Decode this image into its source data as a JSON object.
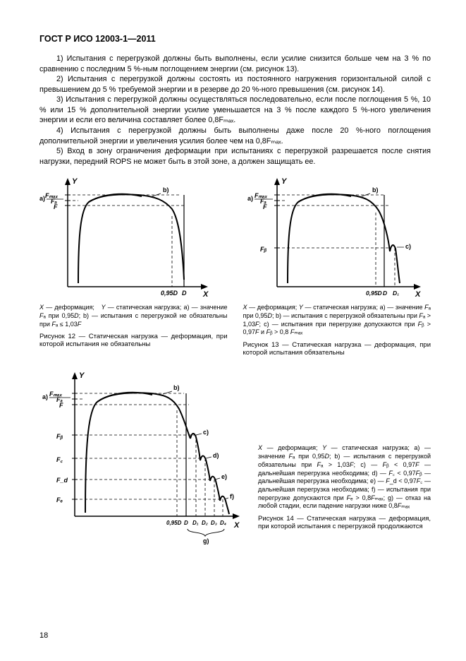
{
  "header": "ГОСТ Р ИСО 12003-1—2011",
  "paragraphs": [
    "1)  Испытания с перегрузкой должны быть выполнены, если усилие снизится больше чем на 3 % по сравнению с последним 5 %-ным поглощением энергии (см. рисунок 13).",
    "2)  Испытания с перегрузкой должны состоять из постоянного нагружения горизонтальной силой с превышением до 5 % требуемой энергии и в резерве до 20 %-ного превышения (см. рисунок 14).",
    "3)  Испытания с перегрузкой должны осуществляться последовательно, если после поглощения 5 %, 10 % или 15 % дополнительной энергии усилие уменьшается на 3 % после каждого 5 %-ного увеличения энергии и если его величина составляет более 0,8Fₘₐₓ.",
    "4)  Испытания с перегрузкой должны быть выполнены даже после 20 %-ного поглощения дополнительной энергии и увеличения усилия более чем на 0,8Fₘₐₓ.",
    "5)  Вход в зону ограничения деформации при испытаниях с перегрузкой разрешается после снятия нагрузки, передний ROPS не может быть в этой зоне, а должен защищать ее."
  ],
  "fig12": {
    "type": "line",
    "x_axis_label": "X",
    "y_axis_label": "Y",
    "y_ticks": [
      "Fₘₐₓ",
      "Fₐ",
      "F"
    ],
    "x_ticks": [
      "0,95D",
      "D"
    ],
    "annotations": [
      "a)",
      "b)"
    ],
    "curve": [
      [
        15,
        145
      ],
      [
        30,
        40
      ],
      [
        55,
        30
      ],
      [
        95,
        28
      ],
      [
        135,
        30
      ],
      [
        160,
        35
      ],
      [
        188,
        60
      ],
      [
        200,
        100
      ],
      [
        205,
        150
      ]
    ],
    "dash_y_levels": [
      30,
      38,
      45
    ],
    "x_tick_positions": [
      188,
      205
    ],
    "axis_color": "#000000",
    "line_color": "#000000",
    "line_width": 2,
    "background_color": "#ffffff",
    "caption_html": "<i>X</i> — деформация;&nbsp;&nbsp;&nbsp;<i>Y</i> — статическая нагрузка; a) — значение <i>F</i>ₐ при 0,95<i>D</i>; b) — испытания с перегрузкой не обязательны при <i>F</i>ₐ ≤ 1,03<i>F</i>",
    "title": "Рисунок 12 — Статическая нагрузка — деформация, при которой испытания не обязательны"
  },
  "fig13": {
    "type": "line",
    "x_axis_label": "X",
    "y_axis_label": "Y",
    "y_ticks": [
      "Fₘₐₓ",
      "Fₐ",
      "F",
      "Fᵦ"
    ],
    "x_ticks": [
      "0,95D",
      "D",
      "D₁"
    ],
    "annotations": [
      "a)",
      "b)",
      "c)"
    ],
    "curve": [
      [
        15,
        145
      ],
      [
        30,
        40
      ],
      [
        55,
        30
      ],
      [
        95,
        28
      ],
      [
        135,
        30
      ],
      [
        160,
        36
      ],
      [
        180,
        55
      ],
      [
        195,
        105
      ],
      [
        210,
        150
      ]
    ],
    "dash_y_levels": [
      30,
      38,
      45,
      105
    ],
    "x_tick_positions": [
      180,
      195,
      210
    ],
    "axis_color": "#000000",
    "line_color": "#000000",
    "line_width": 2,
    "background_color": "#ffffff",
    "caption_html": "<i>X</i> — деформация; <i>Y</i> — статическая нагрузка; a) — значение <i>F</i>ₐ при 0,95<i>D</i>; b) — испытания с перегрузкой обязательны при <i>F</i>ₐ &gt; 1,03<i>F</i>; c) — испытания при перегрузке допускаются при <i>F</i>ᵦ &gt; 0,97<i>F</i> и <i>F</i>ᵦ &gt; 0,8 <i>F</i>ₘₐₓ",
    "title": "Рисунок 13 — Статическая нагрузка — деформация, при которой испытания обязательны"
  },
  "fig14": {
    "type": "line",
    "x_axis_label": "X",
    "y_axis_label": "Y",
    "y_ticks": [
      "Fₘₐₓ",
      "Fₐ",
      "F",
      "Fᵦ",
      "F꜀",
      "F_d",
      "Fₑ"
    ],
    "x_ticks": [
      "0,95D",
      "D",
      "D₁",
      "D₂",
      "D₃",
      "D₄"
    ],
    "brace_label": "g)",
    "annotations": [
      "a)",
      "b)",
      "c)",
      "d)",
      "e)",
      "f)"
    ],
    "curve": [
      [
        18,
        195
      ],
      [
        35,
        48
      ],
      [
        70,
        36
      ],
      [
        115,
        34
      ],
      [
        155,
        36
      ],
      [
        180,
        44
      ],
      [
        198,
        65
      ],
      [
        212,
        95
      ],
      [
        225,
        130
      ],
      [
        238,
        160
      ],
      [
        250,
        188
      ],
      [
        262,
        212
      ]
    ],
    "dash_y_levels": [
      36,
      44,
      52,
      95,
      130,
      160,
      188
    ],
    "x_tick_positions": [
      198,
      212,
      225,
      238,
      250,
      262
    ],
    "axis_color": "#000000",
    "line_color": "#000000",
    "line_width": 2,
    "background_color": "#ffffff",
    "caption_html": "<i>X</i> — деформация; <i>Y</i> — статическая нагрузка; a) — значение <i>F</i>ₐ при 0,95<i>D</i>; b) — испытания с перегрузкой обязательны при <i>F</i>ₐ &gt; 1,03<i>F</i>; c) — <i>F</i>ᵦ &lt; 0,97<i>F</i> — дальнейшая перегрузка необходима; d) — <i>F</i>꜀ &lt; 0,97<i>F</i>ᵦ — дальнейшая перегрузка необходима; e) — <i>F</i>_d &lt; 0,97<i>F</i>꜀ — дальнейшая перегрузка необходима; f) — испытания при перегрузке допускаются при <i>F</i>ₑ &gt; 0,8<i>F</i>ₘₐₓ; g) — отказ на любой стадии, если падение нагрузки ниже 0,8<i>F</i>ₘₐₓ",
    "title": "Рисунок 14 — Статическая нагрузка — деформация, при которой испытания с перегрузкой продолжаются"
  },
  "page_number": "18"
}
